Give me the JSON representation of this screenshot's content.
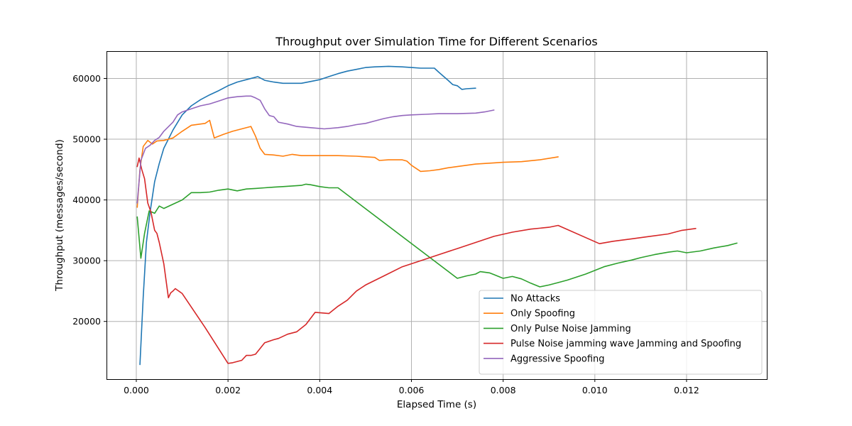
{
  "chart_data": {
    "type": "line",
    "title": "Throughput over Simulation Time for Different Scenarios",
    "xlabel": "Elapsed Time (s)",
    "ylabel": "Throughput (messages/second)",
    "xlim": [
      -0.00065,
      0.01375
    ],
    "ylim": [
      10500,
      64500
    ],
    "x_ticks": [
      0.0,
      0.002,
      0.004,
      0.006,
      0.008,
      0.01,
      0.012
    ],
    "x_tick_labels": [
      "0.000",
      "0.002",
      "0.004",
      "0.006",
      "0.008",
      "0.010",
      "0.012"
    ],
    "y_ticks": [
      20000,
      30000,
      40000,
      50000,
      60000
    ],
    "y_tick_labels": [
      "20000",
      "30000",
      "40000",
      "50000",
      "60000"
    ],
    "grid": true,
    "legend_position": "lower-right",
    "series": [
      {
        "name": "No Attacks",
        "color": "#1f77b4",
        "points": [
          [
            8e-05,
            12900
          ],
          [
            0.00015,
            24000
          ],
          [
            0.00022,
            33000
          ],
          [
            0.0003,
            38000
          ],
          [
            0.0004,
            43000
          ],
          [
            0.0005,
            46000
          ],
          [
            0.0006,
            48500
          ],
          [
            0.0008,
            51500
          ],
          [
            0.001,
            54000
          ],
          [
            0.0012,
            55500
          ],
          [
            0.0014,
            56500
          ],
          [
            0.0016,
            57300
          ],
          [
            0.0018,
            58000
          ],
          [
            0.002,
            58800
          ],
          [
            0.0022,
            59400
          ],
          [
            0.0024,
            59800
          ],
          [
            0.0026,
            60200
          ],
          [
            0.00265,
            60300
          ],
          [
            0.0028,
            59700
          ],
          [
            0.003,
            59400
          ],
          [
            0.0032,
            59200
          ],
          [
            0.0034,
            59200
          ],
          [
            0.0036,
            59200
          ],
          [
            0.0038,
            59500
          ],
          [
            0.004,
            59800
          ],
          [
            0.0042,
            60300
          ],
          [
            0.0044,
            60800
          ],
          [
            0.0046,
            61200
          ],
          [
            0.0048,
            61500
          ],
          [
            0.005,
            61800
          ],
          [
            0.0052,
            61900
          ],
          [
            0.0055,
            62000
          ],
          [
            0.0058,
            61900
          ],
          [
            0.006,
            61800
          ],
          [
            0.0062,
            61700
          ],
          [
            0.0064,
            61700
          ],
          [
            0.0065,
            61700
          ],
          [
            0.0066,
            61000
          ],
          [
            0.0068,
            59700
          ],
          [
            0.0069,
            59000
          ],
          [
            0.007,
            58800
          ],
          [
            0.0071,
            58200
          ],
          [
            0.0072,
            58300
          ],
          [
            0.0074,
            58400
          ]
        ]
      },
      {
        "name": "Only Spoofing",
        "color": "#ff7f0e",
        "points": [
          [
            2e-05,
            38800
          ],
          [
            8e-05,
            45000
          ],
          [
            0.00015,
            48800
          ],
          [
            0.00025,
            49800
          ],
          [
            0.00035,
            49200
          ],
          [
            0.00045,
            49700
          ],
          [
            0.0006,
            49800
          ],
          [
            0.0008,
            50200
          ],
          [
            0.001,
            51300
          ],
          [
            0.0012,
            52300
          ],
          [
            0.0014,
            52500
          ],
          [
            0.0015,
            52600
          ],
          [
            0.0016,
            53100
          ],
          [
            0.0017,
            50200
          ],
          [
            0.0019,
            50800
          ],
          [
            0.0021,
            51300
          ],
          [
            0.0023,
            51700
          ],
          [
            0.0025,
            52100
          ],
          [
            0.0026,
            50500
          ],
          [
            0.0027,
            48500
          ],
          [
            0.0028,
            47500
          ],
          [
            0.003,
            47400
          ],
          [
            0.0032,
            47200
          ],
          [
            0.0034,
            47500
          ],
          [
            0.0036,
            47300
          ],
          [
            0.004,
            47300
          ],
          [
            0.0044,
            47300
          ],
          [
            0.0048,
            47200
          ],
          [
            0.0052,
            47000
          ],
          [
            0.0053,
            46500
          ],
          [
            0.0055,
            46600
          ],
          [
            0.0058,
            46600
          ],
          [
            0.0059,
            46400
          ],
          [
            0.006,
            45700
          ],
          [
            0.0062,
            44700
          ],
          [
            0.0064,
            44800
          ],
          [
            0.0066,
            45000
          ],
          [
            0.0068,
            45300
          ],
          [
            0.007,
            45500
          ],
          [
            0.0074,
            45900
          ],
          [
            0.0078,
            46100
          ],
          [
            0.008,
            46200
          ],
          [
            0.0084,
            46300
          ],
          [
            0.0088,
            46600
          ],
          [
            0.0092,
            47100
          ]
        ]
      },
      {
        "name": "Only Pulse Noise Jamming",
        "color": "#2ca02c",
        "points": [
          [
            2e-05,
            37200
          ],
          [
            0.0001,
            30400
          ],
          [
            0.00018,
            34500
          ],
          [
            0.00028,
            38200
          ],
          [
            0.0004,
            37800
          ],
          [
            0.0005,
            39000
          ],
          [
            0.0006,
            38600
          ],
          [
            0.0008,
            39300
          ],
          [
            0.001,
            40000
          ],
          [
            0.0012,
            41200
          ],
          [
            0.0014,
            41200
          ],
          [
            0.0016,
            41300
          ],
          [
            0.0018,
            41600
          ],
          [
            0.002,
            41800
          ],
          [
            0.0022,
            41500
          ],
          [
            0.0024,
            41800
          ],
          [
            0.0026,
            41900
          ],
          [
            0.0028,
            42000
          ],
          [
            0.003,
            42100
          ],
          [
            0.0032,
            42200
          ],
          [
            0.0034,
            42300
          ],
          [
            0.0036,
            42400
          ],
          [
            0.0037,
            42600
          ],
          [
            0.0038,
            42500
          ],
          [
            0.004,
            42200
          ],
          [
            0.0042,
            42000
          ],
          [
            0.0044,
            42000
          ],
          [
            0.007,
            27100
          ],
          [
            0.0072,
            27500
          ],
          [
            0.0074,
            27800
          ],
          [
            0.0075,
            28200
          ],
          [
            0.0077,
            28000
          ],
          [
            0.0078,
            27700
          ],
          [
            0.008,
            27100
          ],
          [
            0.0082,
            27400
          ],
          [
            0.0084,
            27000
          ],
          [
            0.0086,
            26300
          ],
          [
            0.0088,
            25700
          ],
          [
            0.009,
            26000
          ],
          [
            0.0092,
            26400
          ],
          [
            0.0094,
            26800
          ],
          [
            0.0096,
            27300
          ],
          [
            0.0098,
            27800
          ],
          [
            0.01,
            28400
          ],
          [
            0.0102,
            29000
          ],
          [
            0.0105,
            29600
          ],
          [
            0.0108,
            30100
          ],
          [
            0.011,
            30500
          ],
          [
            0.0113,
            31000
          ],
          [
            0.0116,
            31400
          ],
          [
            0.0118,
            31600
          ],
          [
            0.012,
            31300
          ],
          [
            0.0123,
            31600
          ],
          [
            0.0126,
            32100
          ],
          [
            0.0129,
            32500
          ],
          [
            0.0131,
            32900
          ]
        ]
      },
      {
        "name": "Pulse Noise jamming wave Jamming and Spoofing",
        "color": "#d62728",
        "points": [
          [
            2e-05,
            45500
          ],
          [
            6e-05,
            46900
          ],
          [
            0.00012,
            45000
          ],
          [
            0.00018,
            43500
          ],
          [
            0.00025,
            39500
          ],
          [
            0.00032,
            38000
          ],
          [
            0.0004,
            35000
          ],
          [
            0.00045,
            34500
          ],
          [
            0.0005,
            33000
          ],
          [
            0.0006,
            29500
          ],
          [
            0.0007,
            23900
          ],
          [
            0.00075,
            24700
          ],
          [
            0.0008,
            25000
          ],
          [
            0.00085,
            25400
          ],
          [
            0.001,
            24600
          ],
          [
            0.0015,
            19000
          ],
          [
            0.002,
            13100
          ],
          [
            0.0021,
            13200
          ],
          [
            0.0023,
            13600
          ],
          [
            0.0024,
            14400
          ],
          [
            0.0025,
            14400
          ],
          [
            0.0026,
            14600
          ],
          [
            0.0028,
            16500
          ],
          [
            0.003,
            17000
          ],
          [
            0.0031,
            17200
          ],
          [
            0.0033,
            17900
          ],
          [
            0.0035,
            18300
          ],
          [
            0.0037,
            19500
          ],
          [
            0.0039,
            21500
          ],
          [
            0.0042,
            21300
          ],
          [
            0.0044,
            22500
          ],
          [
            0.0046,
            23500
          ],
          [
            0.0048,
            25000
          ],
          [
            0.005,
            26000
          ],
          [
            0.0054,
            27500
          ],
          [
            0.0058,
            29000
          ],
          [
            0.0062,
            30000
          ],
          [
            0.0066,
            31000
          ],
          [
            0.007,
            32000
          ],
          [
            0.0074,
            33000
          ],
          [
            0.0078,
            34000
          ],
          [
            0.0082,
            34700
          ],
          [
            0.0086,
            35200
          ],
          [
            0.009,
            35500
          ],
          [
            0.0092,
            35800
          ],
          [
            0.0101,
            32800
          ],
          [
            0.0104,
            33200
          ],
          [
            0.0108,
            33600
          ],
          [
            0.0112,
            34000
          ],
          [
            0.0116,
            34400
          ],
          [
            0.0119,
            35000
          ],
          [
            0.0122,
            35300
          ]
        ]
      },
      {
        "name": "Aggressive Spoofing",
        "color": "#9467bd",
        "points": [
          [
            2e-05,
            39500
          ],
          [
            0.0001,
            46500
          ],
          [
            0.0002,
            48500
          ],
          [
            0.0003,
            49000
          ],
          [
            0.0004,
            49800
          ],
          [
            0.0005,
            50300
          ],
          [
            0.0006,
            51300
          ],
          [
            0.0008,
            52800
          ],
          [
            0.0009,
            54000
          ],
          [
            0.001,
            54500
          ],
          [
            0.0012,
            55000
          ],
          [
            0.0014,
            55500
          ],
          [
            0.0016,
            55800
          ],
          [
            0.0018,
            56300
          ],
          [
            0.002,
            56800
          ],
          [
            0.0022,
            57000
          ],
          [
            0.0024,
            57100
          ],
          [
            0.0025,
            57100
          ],
          [
            0.0026,
            56800
          ],
          [
            0.0027,
            56400
          ],
          [
            0.0028,
            55000
          ],
          [
            0.0029,
            53900
          ],
          [
            0.003,
            53700
          ],
          [
            0.0031,
            52800
          ],
          [
            0.0033,
            52500
          ],
          [
            0.0035,
            52100
          ],
          [
            0.0038,
            51900
          ],
          [
            0.0041,
            51700
          ],
          [
            0.0044,
            51900
          ],
          [
            0.0046,
            52100
          ],
          [
            0.0048,
            52400
          ],
          [
            0.005,
            52600
          ],
          [
            0.0052,
            53000
          ],
          [
            0.0054,
            53400
          ],
          [
            0.0056,
            53700
          ],
          [
            0.0058,
            53900
          ],
          [
            0.006,
            54000
          ],
          [
            0.0063,
            54100
          ],
          [
            0.0066,
            54200
          ],
          [
            0.007,
            54200
          ],
          [
            0.0074,
            54300
          ],
          [
            0.0076,
            54500
          ],
          [
            0.0078,
            54800
          ]
        ]
      }
    ]
  }
}
